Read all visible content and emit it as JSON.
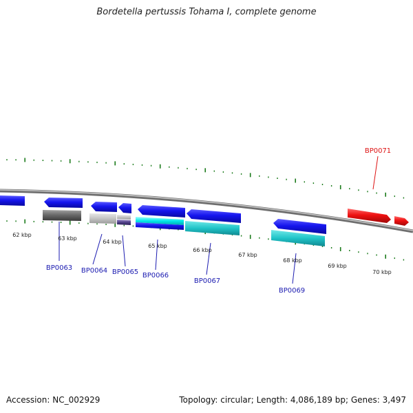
{
  "title": "Bordetella pertussis Tohama I, complete genome",
  "footer": {
    "accession_label": "Accession:",
    "accession_value": "NC_002929",
    "topology_label": "Topology:",
    "topology_value": "circular",
    "length_label": "Length:",
    "length_value": "4,086,189 bp",
    "genes_label": "Genes:",
    "genes_value": "3,497"
  },
  "scale_labels": [
    "62 kbp",
    "63 kbp",
    "64 kbp",
    "65 kbp",
    "66 kbp",
    "67 kbp",
    "68 kbp",
    "69 kbp",
    "70 kbp"
  ],
  "gene_labels": [
    "BP0063",
    "BP0064",
    "BP0065",
    "BP0066",
    "BP0067",
    "BP0069",
    "BP0071"
  ],
  "colors": {
    "forward_cds": "#1010e0",
    "reverse_cds": "#1010e0",
    "cog_gray": "#606060",
    "cog_light": "#c0c0c0",
    "cog_cyan": "#00e0e0",
    "cog_teal": "#20c0c0",
    "cog_purple": "#504080",
    "rna": "#ee1111",
    "label_blue": "#1a1ab0",
    "label_red": "#dd1111",
    "backbone": "#888888",
    "ticks": "#1a7a1a"
  }
}
